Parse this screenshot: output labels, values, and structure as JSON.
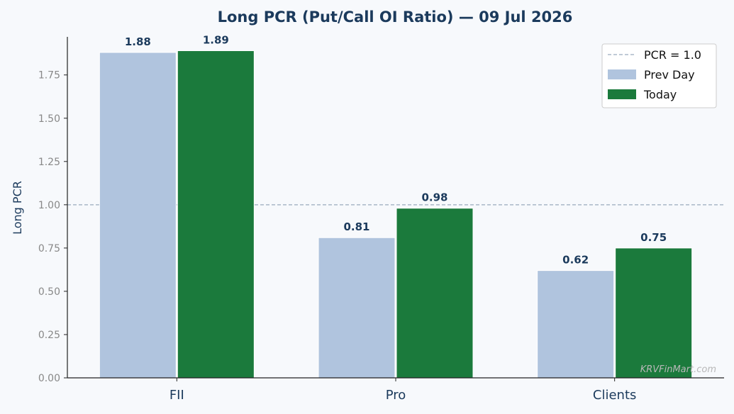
{
  "chart_data": {
    "type": "bar",
    "title": "Long PCR (Put/Call OI Ratio) — 09 Jul 2026",
    "ylabel": "Long PCR",
    "xlabel": "",
    "categories": [
      "FII",
      "Pro",
      "Clients"
    ],
    "series": [
      {
        "name": "Prev Day",
        "values": [
          1.88,
          0.81,
          0.62
        ],
        "labels": [
          "1.88",
          "0.81",
          "0.62"
        ],
        "color": "#b0c4de"
      },
      {
        "name": "Today",
        "values": [
          1.89,
          0.98,
          0.75
        ],
        "labels": [
          "1.89",
          "0.98",
          "0.75"
        ],
        "color": "#1b7a3c"
      }
    ],
    "reference_line": {
      "label": "PCR = 1.0",
      "value": 1.0,
      "color": "#9aabbd"
    },
    "ylim": [
      0,
      1.97
    ],
    "yticks": [
      0,
      0.25,
      0.5,
      0.75,
      1.0,
      1.25,
      1.5,
      1.75
    ],
    "ytick_labels": [
      "0.00",
      "0.25",
      "0.50",
      "0.75",
      "1.00",
      "1.25",
      "1.50",
      "1.75"
    ],
    "legend_placement": "top-right",
    "grid": false,
    "watermark": "KRVFinMart.com"
  }
}
